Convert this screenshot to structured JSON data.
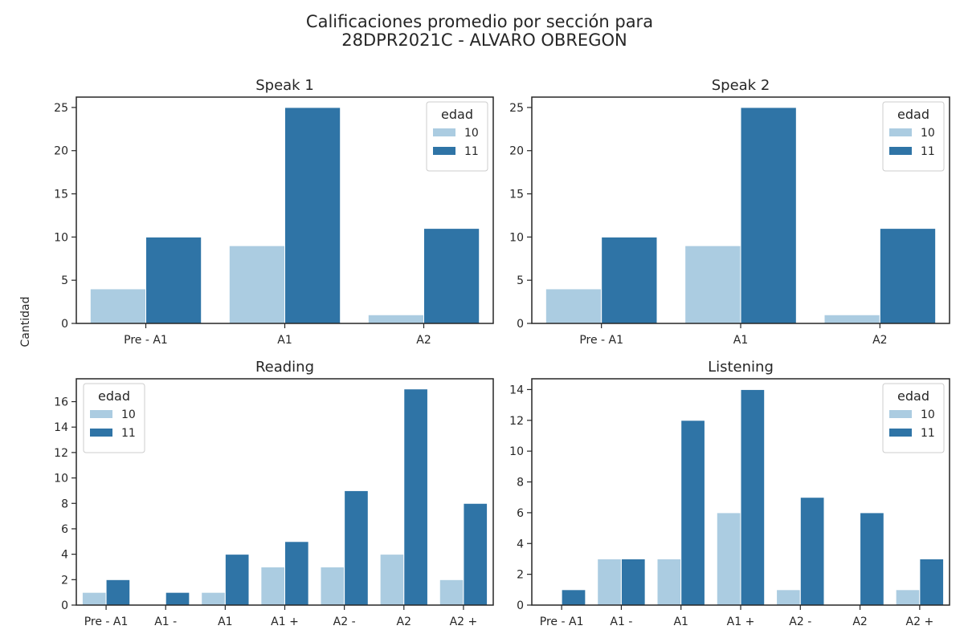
{
  "figure": {
    "title_line1": "Calificaciones promedio por sección para",
    "title_line2": "28DPR2021C - ALVARO OBREGON",
    "ylabel": "Cantidad"
  },
  "colors": {
    "edad_10": "#abcce1",
    "edad_11": "#2f74a6"
  },
  "chart_data": [
    {
      "type": "bar",
      "title": "Speak 1",
      "categories": [
        "Pre - A1",
        "A1",
        "A2"
      ],
      "series": [
        {
          "name": "10",
          "values": [
            4,
            9,
            1
          ]
        },
        {
          "name": "11",
          "values": [
            10,
            25,
            11
          ]
        }
      ],
      "ylim": [
        0,
        26.2
      ],
      "yticks": [
        0,
        5,
        10,
        15,
        20,
        25
      ],
      "legend": {
        "title": "edad",
        "position": "upper right"
      }
    },
    {
      "type": "bar",
      "title": "Speak 2",
      "categories": [
        "Pre - A1",
        "A1",
        "A2"
      ],
      "series": [
        {
          "name": "10",
          "values": [
            4,
            9,
            1
          ]
        },
        {
          "name": "11",
          "values": [
            10,
            25,
            11
          ]
        }
      ],
      "ylim": [
        0,
        26.2
      ],
      "yticks": [
        0,
        5,
        10,
        15,
        20,
        25
      ],
      "legend": {
        "title": "edad",
        "position": "upper right"
      }
    },
    {
      "type": "bar",
      "title": "Reading",
      "categories": [
        "Pre - A1",
        "A1 -",
        "A1",
        "A1 +",
        "A2 -",
        "A2",
        "A2 +"
      ],
      "series": [
        {
          "name": "10",
          "values": [
            1,
            0,
            1,
            3,
            3,
            4,
            2
          ]
        },
        {
          "name": "11",
          "values": [
            2,
            1,
            4,
            5,
            9,
            17,
            8
          ]
        }
      ],
      "ylim": [
        0,
        17.8
      ],
      "yticks": [
        0,
        2,
        4,
        6,
        8,
        10,
        12,
        14,
        16
      ],
      "legend": {
        "title": "edad",
        "position": "upper left"
      }
    },
    {
      "type": "bar",
      "title": "Listening",
      "categories": [
        "Pre - A1",
        "A1 -",
        "A1",
        "A1 +",
        "A2 -",
        "A2",
        "A2 +"
      ],
      "series": [
        {
          "name": "10",
          "values": [
            0,
            3,
            3,
            6,
            1,
            0,
            1
          ]
        },
        {
          "name": "11",
          "values": [
            1,
            3,
            12,
            14,
            7,
            6,
            3
          ]
        }
      ],
      "ylim": [
        0,
        14.7
      ],
      "yticks": [
        0,
        2,
        4,
        6,
        8,
        10,
        12,
        14
      ],
      "legend": {
        "title": "edad",
        "position": "upper right"
      }
    }
  ]
}
